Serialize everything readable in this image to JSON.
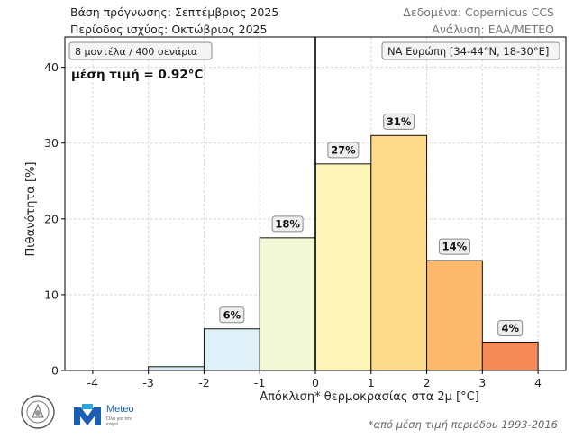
{
  "header": {
    "base": "Βάση πρόγνωσης: Σεπτέμβριος 2025",
    "period": "Περίοδος ισχύος: Οκτώβριος 2025",
    "data_source": "Δεδομένα: Copernicus CCS",
    "analysis": "Ανάλυση: ΕΑΑ/ΜΕΤΕΟ"
  },
  "annotations": {
    "models": "8 μοντέλα / 400 σενάρια",
    "mean": "μέση τιμή = 0.92°C",
    "region": "ΝΑ Ευρώπη [34-44°N, 18-30°E]"
  },
  "footnote": "*από μέση τιμή περιόδου 1993-2016",
  "logos": {
    "meteo_text": "Meteo",
    "meteo_sub": "Όλα για τον καιρό"
  },
  "chart_data": {
    "type": "bar",
    "xlabel": "Απόκλιση* θερμοκρασίας στα 2μ [°C]",
    "ylabel": "Πιθανότητα [%]",
    "xlim": [
      -4.5,
      4.5
    ],
    "ylim": [
      0,
      44
    ],
    "xticks": [
      "-4",
      "-3",
      "-2",
      "-1",
      "0",
      "1",
      "2",
      "3",
      "4"
    ],
    "yticks": [
      "0",
      "10",
      "20",
      "30",
      "40"
    ],
    "grid": true,
    "mean_line_x": 0,
    "bins": [
      {
        "from": -3,
        "to": -2,
        "value": 0.5,
        "label": "",
        "color": "#d6eaf5"
      },
      {
        "from": -2,
        "to": -1,
        "value": 5.5,
        "label": "6%",
        "color": "#dff0f8"
      },
      {
        "from": -1,
        "to": 0,
        "value": 17.5,
        "label": "18%",
        "color": "#f3f8d6"
      },
      {
        "from": 0,
        "to": 1,
        "value": 27.25,
        "label": "27%",
        "color": "#fff4b8"
      },
      {
        "from": 1,
        "to": 2,
        "value": 31,
        "label": "31%",
        "color": "#fdd98a"
      },
      {
        "from": 2,
        "to": 3,
        "value": 14.5,
        "label": "14%",
        "color": "#fdb96b"
      },
      {
        "from": 3,
        "to": 4,
        "value": 3.75,
        "label": "4%",
        "color": "#f58a57"
      }
    ]
  }
}
